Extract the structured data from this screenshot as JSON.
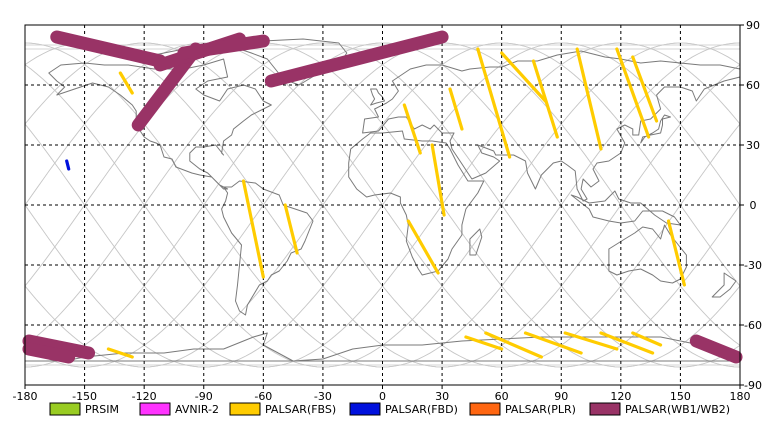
{
  "map": {
    "lon_ticks": [
      "-180",
      "-150",
      "-120",
      "-90",
      "-60",
      "-30",
      "0",
      "30",
      "60",
      "90",
      "120",
      "150",
      "180"
    ],
    "lat_ticks": [
      "90",
      "60",
      "30",
      "0",
      "-30",
      "-60",
      "-90"
    ],
    "lon_values": [
      -180,
      -150,
      -120,
      -90,
      -60,
      -30,
      0,
      30,
      60,
      90,
      120,
      150,
      180
    ],
    "lat_values": [
      90,
      60,
      30,
      0,
      -30,
      -60,
      -90
    ],
    "extent": {
      "lon": [
        -180,
        180
      ],
      "lat": [
        -90,
        90
      ]
    },
    "grid": "dashed",
    "colors": {
      "background": "#ffffff",
      "coastline": "#7a7a7a",
      "orbit_track": "#c8c8c8",
      "grid": "#000000"
    }
  },
  "legend": {
    "items": [
      {
        "label": "PRSIM",
        "color": "#99cc22"
      },
      {
        "label": "AVNIR-2",
        "color": "#ff33ff"
      },
      {
        "label": "PALSAR(FBS)",
        "color": "#ffcc00"
      },
      {
        "label": "PALSAR(FBD)",
        "color": "#0011dd"
      },
      {
        "label": "PALSAR(PLR)",
        "color": "#ff6611"
      },
      {
        "label": "PALSAR(WB1/WB2)",
        "color": "#993366"
      }
    ]
  },
  "chart_data": {
    "type": "map",
    "layers": [
      {
        "name": "PALSAR(FBS)",
        "color": "#ffcc00",
        "strips": [
          {
            "lon": [
              -132,
              -126
            ],
            "lat": [
              66,
              56
            ]
          },
          {
            "lon": [
              -70,
              -60
            ],
            "lat": [
              12,
              -36
            ]
          },
          {
            "lon": [
              -49,
              -43
            ],
            "lat": [
              0,
              -24
            ]
          },
          {
            "lon": [
              11,
              19
            ],
            "lat": [
              50,
              26
            ]
          },
          {
            "lon": [
              13,
              28
            ],
            "lat": [
              -8,
              -34
            ]
          },
          {
            "lon": [
              25,
              31
            ],
            "lat": [
              30,
              -5
            ]
          },
          {
            "lon": [
              34,
              40
            ],
            "lat": [
              58,
              38
            ]
          },
          {
            "lon": [
              48,
              64
            ],
            "lat": [
              78,
              24
            ]
          },
          {
            "lon": [
              60,
              82
            ],
            "lat": [
              76,
              52
            ]
          },
          {
            "lon": [
              76,
              88
            ],
            "lat": [
              72,
              34
            ]
          },
          {
            "lon": [
              98,
              110
            ],
            "lat": [
              78,
              28
            ]
          },
          {
            "lon": [
              118,
              134
            ],
            "lat": [
              78,
              34
            ]
          },
          {
            "lon": [
              126,
              138
            ],
            "lat": [
              74,
              42
            ]
          },
          {
            "lon": [
              144,
              152
            ],
            "lat": [
              -8,
              -40
            ]
          },
          {
            "lon": [
              -138,
              -126
            ],
            "lat": [
              -72,
              -76
            ]
          },
          {
            "lon": [
              42,
              60
            ],
            "lat": [
              -66,
              -72
            ]
          },
          {
            "lon": [
              52,
              80
            ],
            "lat": [
              -64,
              -76
            ]
          },
          {
            "lon": [
              72,
              100
            ],
            "lat": [
              -64,
              -74
            ]
          },
          {
            "lon": [
              92,
              118
            ],
            "lat": [
              -64,
              -72
            ]
          },
          {
            "lon": [
              110,
              136
            ],
            "lat": [
              -64,
              -74
            ]
          },
          {
            "lon": [
              126,
              140
            ],
            "lat": [
              -64,
              -70
            ]
          }
        ]
      },
      {
        "name": "PALSAR(FBD)",
        "color": "#0011dd",
        "strips": [
          {
            "lon": [
              -159,
              -158
            ],
            "lat": [
              22,
              18
            ]
          }
        ]
      },
      {
        "name": "PALSAR(WB1/WB2)",
        "color": "#993366",
        "strips": [
          {
            "lon": [
              -164,
              -112
            ],
            "lat": [
              84,
              72
            ]
          },
          {
            "lon": [
              -123,
              -94
            ],
            "lat": [
              40,
              78
            ]
          },
          {
            "lon": [
              -112,
              -72
            ],
            "lat": [
              70,
              83
            ]
          },
          {
            "lon": [
              -100,
              -60
            ],
            "lat": [
              76,
              82
            ]
          },
          {
            "lon": [
              -56,
              30
            ],
            "lat": [
              62,
              84
            ]
          },
          {
            "lon": [
              -178,
              -148
            ],
            "lat": [
              -68,
              -74
            ]
          },
          {
            "lon": [
              -178,
              -158
            ],
            "lat": [
              -72,
              -76
            ]
          },
          {
            "lon": [
              158,
              178
            ],
            "lat": [
              -68,
              -76
            ]
          }
        ]
      }
    ]
  }
}
